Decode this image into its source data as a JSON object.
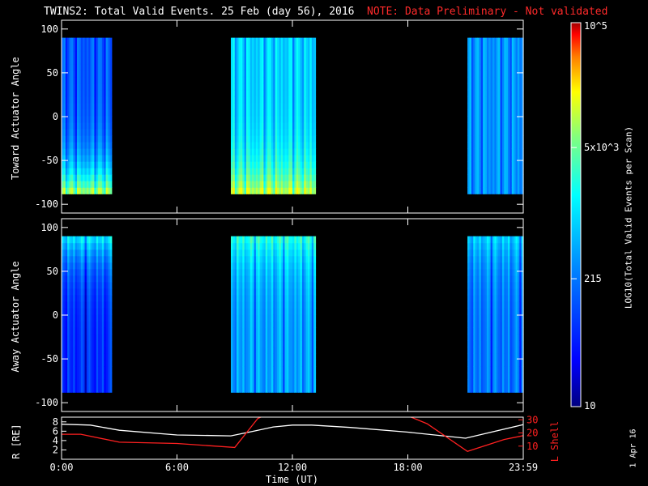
{
  "title": {
    "main": "TWINS2: Total Valid Events. 25 Feb (day  56), 2016",
    "note": "NOTE: Data Preliminary - Not validated",
    "note_color": "#ff2a2a"
  },
  "date_stamp": "1 Apr 16",
  "colorbar": {
    "label": "LOG10(Total Valid Events per Scan)",
    "ticks": [
      "10",
      "215",
      "5x10^3",
      "10^5"
    ],
    "range": [
      10,
      100000
    ],
    "scale": "log",
    "colormap": [
      "#00008f",
      "#0000ff",
      "#0080ff",
      "#00ffff",
      "#80ff80",
      "#ffff00",
      "#ff8000",
      "#ff0000",
      "#800000"
    ]
  },
  "chart_data": [
    {
      "type": "heatmap",
      "panel": "toward",
      "ylabel": "Toward Actuator Angle",
      "yticks": [
        100,
        50,
        0,
        -50,
        -100
      ],
      "ylim": [
        -110,
        110
      ],
      "xlim": [
        0,
        24
      ],
      "data_angle_range": [
        -88,
        90
      ],
      "segments": [
        {
          "start_h": 0.0,
          "end_h": 2.6,
          "base": 0.3,
          "peak": 0.78,
          "peak_at": "low-angle"
        },
        {
          "start_h": 8.8,
          "end_h": 13.2,
          "base": 0.5,
          "peak": 0.8,
          "peak_at": "low-angle"
        },
        {
          "start_h": 21.1,
          "end_h": 24.0,
          "base": 0.4,
          "peak": 0.55,
          "peak_at": "none"
        }
      ]
    },
    {
      "type": "heatmap",
      "panel": "away",
      "ylabel": "Away Actuator Angle",
      "yticks": [
        100,
        50,
        0,
        -50,
        -100
      ],
      "ylim": [
        -110,
        110
      ],
      "xlim": [
        0,
        24
      ],
      "data_angle_range": [
        -88,
        90
      ],
      "segments": [
        {
          "start_h": 0.0,
          "end_h": 2.6,
          "base": 0.22,
          "peak": 0.55,
          "peak_at": "high-angle"
        },
        {
          "start_h": 8.8,
          "end_h": 13.2,
          "base": 0.42,
          "peak": 0.62,
          "peak_at": "high-angle"
        },
        {
          "start_h": 21.1,
          "end_h": 24.0,
          "base": 0.35,
          "peak": 0.5,
          "peak_at": "high-angle"
        }
      ]
    },
    {
      "type": "line",
      "panel": "ephemeris",
      "xlabel": "Time (UT)",
      "xticks": [
        "0:00",
        "6:00",
        "12:00",
        "18:00",
        "23:59"
      ],
      "xtick_hours": [
        0,
        6,
        12,
        18,
        24
      ],
      "xlim": [
        0,
        24
      ],
      "ylabel_left": "R [RE]",
      "ylabel_right": "L Shell",
      "yticks_left": [
        2,
        4,
        6,
        8
      ],
      "ylim_left": [
        0,
        9
      ],
      "yticks_right": [
        10,
        20,
        30
      ],
      "ylim_right": [
        0,
        32
      ],
      "series": [
        {
          "name": "R",
          "axis": "left",
          "color": "#ffffff",
          "x": [
            0,
            1.5,
            3,
            6,
            8.8,
            10,
            11,
            12,
            13,
            15,
            18,
            21,
            24
          ],
          "y": [
            7.5,
            7.3,
            6.2,
            5.2,
            5.0,
            6.0,
            6.9,
            7.3,
            7.3,
            6.8,
            5.8,
            4.5,
            7.4
          ]
        },
        {
          "name": "L Shell",
          "axis": "right",
          "color": "#ff2020",
          "x": [
            0,
            1,
            3,
            6,
            9,
            10.2,
            10.5,
            18,
            19,
            21.1,
            23,
            24
          ],
          "y": [
            19,
            19,
            13,
            12,
            9,
            31,
            33,
            33,
            27,
            6,
            15,
            18
          ]
        }
      ]
    }
  ]
}
